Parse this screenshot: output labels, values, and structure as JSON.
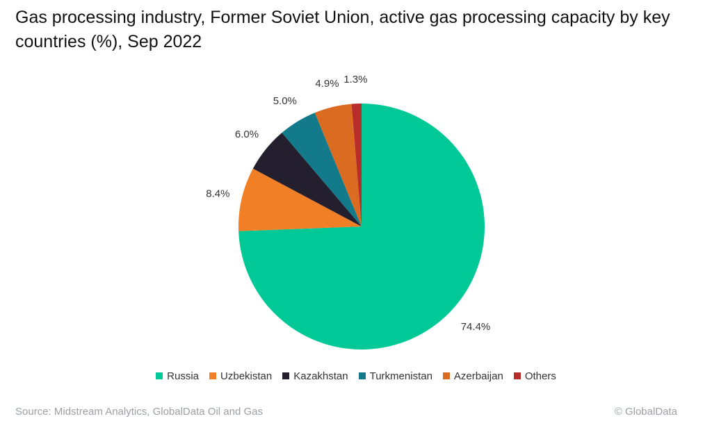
{
  "chart_data": {
    "type": "pie",
    "title": "Gas processing industry, Former Soviet Union, active gas processing capacity by key countries (%), Sep 2022",
    "categories": [
      "Russia",
      "Uzbekistan",
      "Kazakhstan",
      "Turkmenistan",
      "Azerbaijan",
      "Others"
    ],
    "values": [
      74.4,
      8.4,
      6.0,
      5.0,
      4.9,
      1.3
    ],
    "labels": [
      "74.4%",
      "8.4%",
      "6.0%",
      "5.0%",
      "4.9%",
      "1.3%"
    ],
    "colors": [
      "#00c896",
      "#f07f26",
      "#231f2e",
      "#127a8a",
      "#db6b21",
      "#b72d2a"
    ],
    "legend_position": "bottom",
    "start": "12 o'clock",
    "direction": "clockwise"
  },
  "footer": {
    "source": "Source: Midstream Analytics, GlobalData Oil and Gas",
    "copyright": "© GlobalData"
  }
}
